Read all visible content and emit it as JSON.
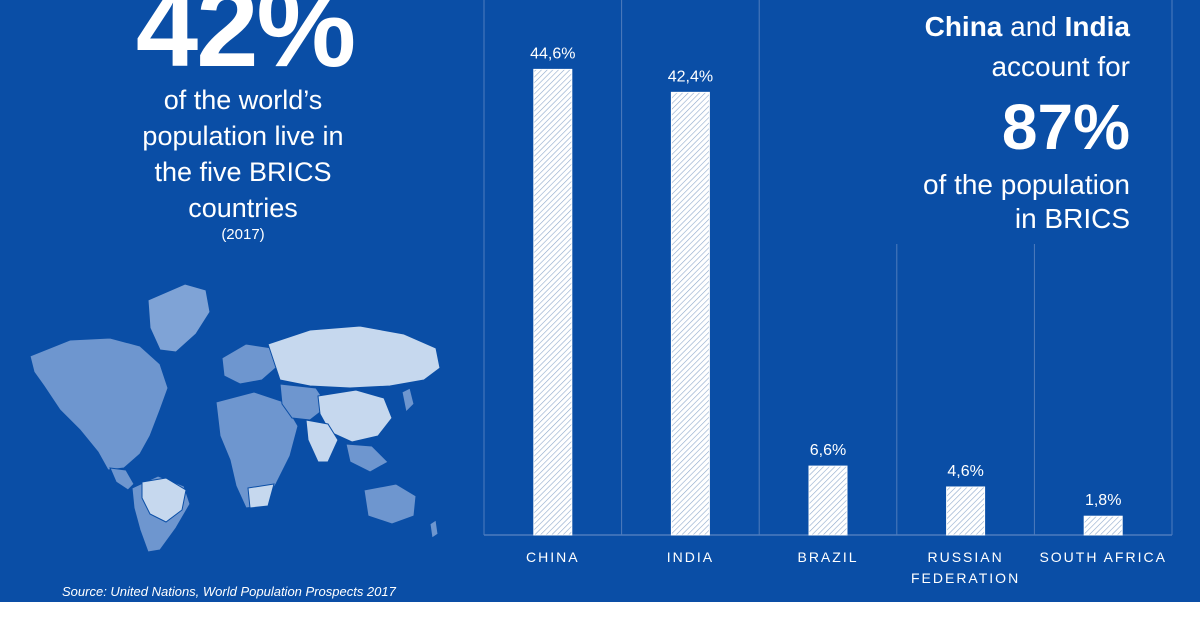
{
  "colors": {
    "background": "#0a4ea6",
    "text": "#ffffff",
    "bar": "#ffffff",
    "map_light": "#c6d8ee",
    "map_mid": "#6e96cf"
  },
  "left": {
    "big_stat": "42%",
    "line1": "of the world’s",
    "line2": "population live in",
    "line3": "the five BRICS",
    "line4": "countries",
    "year": "(2017)",
    "source": "Source: United Nations, World Population Prospects 2017",
    "map_icon": "world-map-icon"
  },
  "right": {
    "country1": "China",
    "and": " and ",
    "country2": "India",
    "line2": "account for",
    "big_stat": "87%",
    "line3": "of the population",
    "line4": "in BRICS"
  },
  "chart_data": {
    "type": "bar",
    "categories": [
      "CHINA",
      "INDIA",
      "BRAZIL",
      "RUSSIAN FEDERATION",
      "SOUTH AFRICA"
    ],
    "category_lines": [
      [
        "CHINA"
      ],
      [
        "INDIA"
      ],
      [
        "BRAZIL"
      ],
      [
        "RUSSIAN",
        "FEDERATION"
      ],
      [
        "SOUTH AFRICA"
      ]
    ],
    "values": [
      44.6,
      42.4,
      6.6,
      4.6,
      1.8
    ],
    "data_labels": [
      "44,6%",
      "42,4%",
      "6,6%",
      "4,6%",
      "1,8%"
    ],
    "ylim": [
      0,
      50
    ],
    "grid": false,
    "bar_pattern": "diagonal-hatch"
  }
}
